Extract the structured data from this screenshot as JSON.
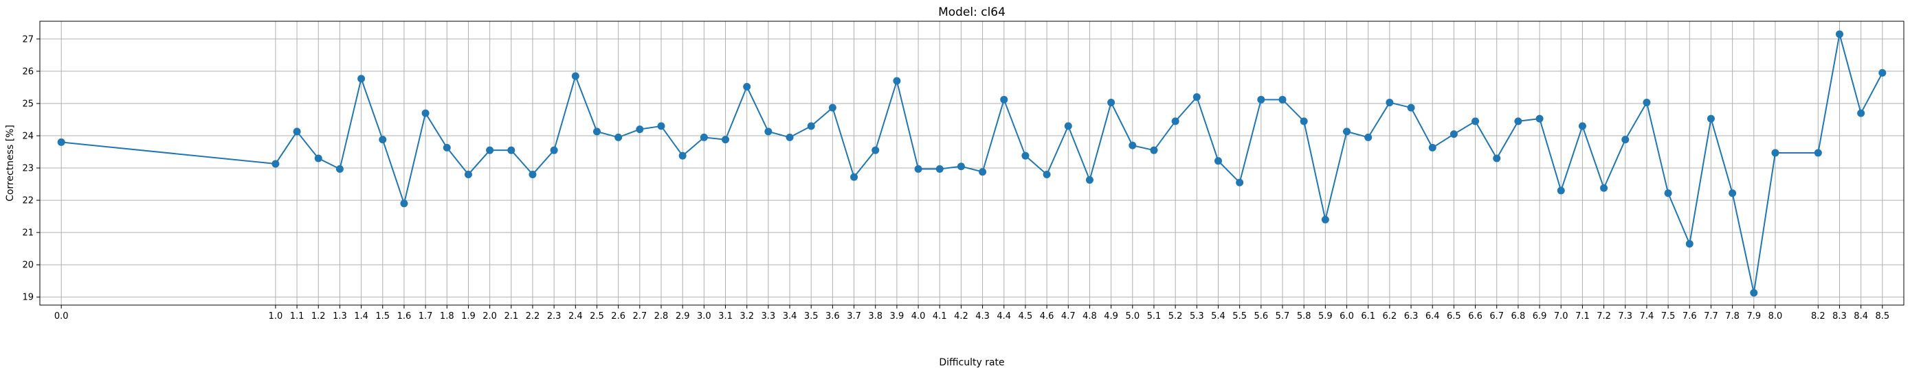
{
  "chart_data": {
    "type": "line",
    "title": "Model: cl64",
    "xlabel": "Difficulty rate",
    "ylabel": "Correctness [%]",
    "xlim": [
      -0.1,
      8.6
    ],
    "ylim": [
      18.75,
      27.55
    ],
    "yticks": [
      19,
      20,
      21,
      22,
      23,
      24,
      25,
      26,
      27
    ],
    "grid": true,
    "series_color": "#1f77b4",
    "series": [
      {
        "x": [
          "0.0",
          "1.0",
          "1.1",
          "1.2",
          "1.3",
          "1.4",
          "1.5",
          "1.6",
          "1.7",
          "1.8",
          "1.9",
          "2.0",
          "2.1",
          "2.2",
          "2.3",
          "2.4",
          "2.5",
          "2.6",
          "2.7",
          "2.8",
          "2.9",
          "3.0",
          "3.1",
          "3.2",
          "3.3",
          "3.4",
          "3.5",
          "3.6",
          "3.7",
          "3.8",
          "3.9",
          "4.0",
          "4.1",
          "4.2",
          "4.3",
          "4.4",
          "4.5",
          "4.6",
          "4.7",
          "4.8",
          "4.9",
          "5.0",
          "5.1",
          "5.2",
          "5.3",
          "5.4",
          "5.5",
          "5.6",
          "5.7",
          "5.8",
          "5.9",
          "6.0",
          "6.1",
          "6.2",
          "6.3",
          "6.4",
          "6.5",
          "6.6",
          "6.7",
          "6.8",
          "6.9",
          "7.0",
          "7.1",
          "7.2",
          "7.3",
          "7.4",
          "7.5",
          "7.6",
          "7.7",
          "7.8",
          "7.9",
          "8.0",
          "8.2",
          "8.3",
          "8.4",
          "8.5"
        ],
        "values": [
          23.8,
          23.13,
          24.13,
          23.3,
          22.97,
          25.77,
          23.88,
          21.9,
          24.7,
          23.63,
          22.8,
          23.55,
          23.55,
          22.8,
          23.55,
          25.85,
          24.13,
          23.95,
          24.2,
          24.3,
          23.38,
          23.95,
          23.88,
          25.52,
          24.13,
          23.95,
          24.3,
          24.87,
          22.72,
          23.55,
          25.7,
          22.97,
          22.97,
          23.05,
          22.88,
          25.12,
          23.38,
          22.8,
          24.3,
          22.63,
          25.03,
          23.7,
          23.55,
          24.45,
          25.2,
          23.22,
          22.55,
          25.12,
          25.12,
          24.45,
          21.4,
          24.13,
          23.95,
          25.03,
          24.87,
          23.63,
          24.05,
          24.45,
          23.3,
          24.45,
          24.53,
          22.3,
          24.3,
          22.38,
          23.88,
          25.03,
          22.22,
          20.65,
          24.53,
          22.22,
          19.13,
          23.47,
          23.47,
          27.15,
          24.7,
          25.95
        ]
      }
    ]
  }
}
